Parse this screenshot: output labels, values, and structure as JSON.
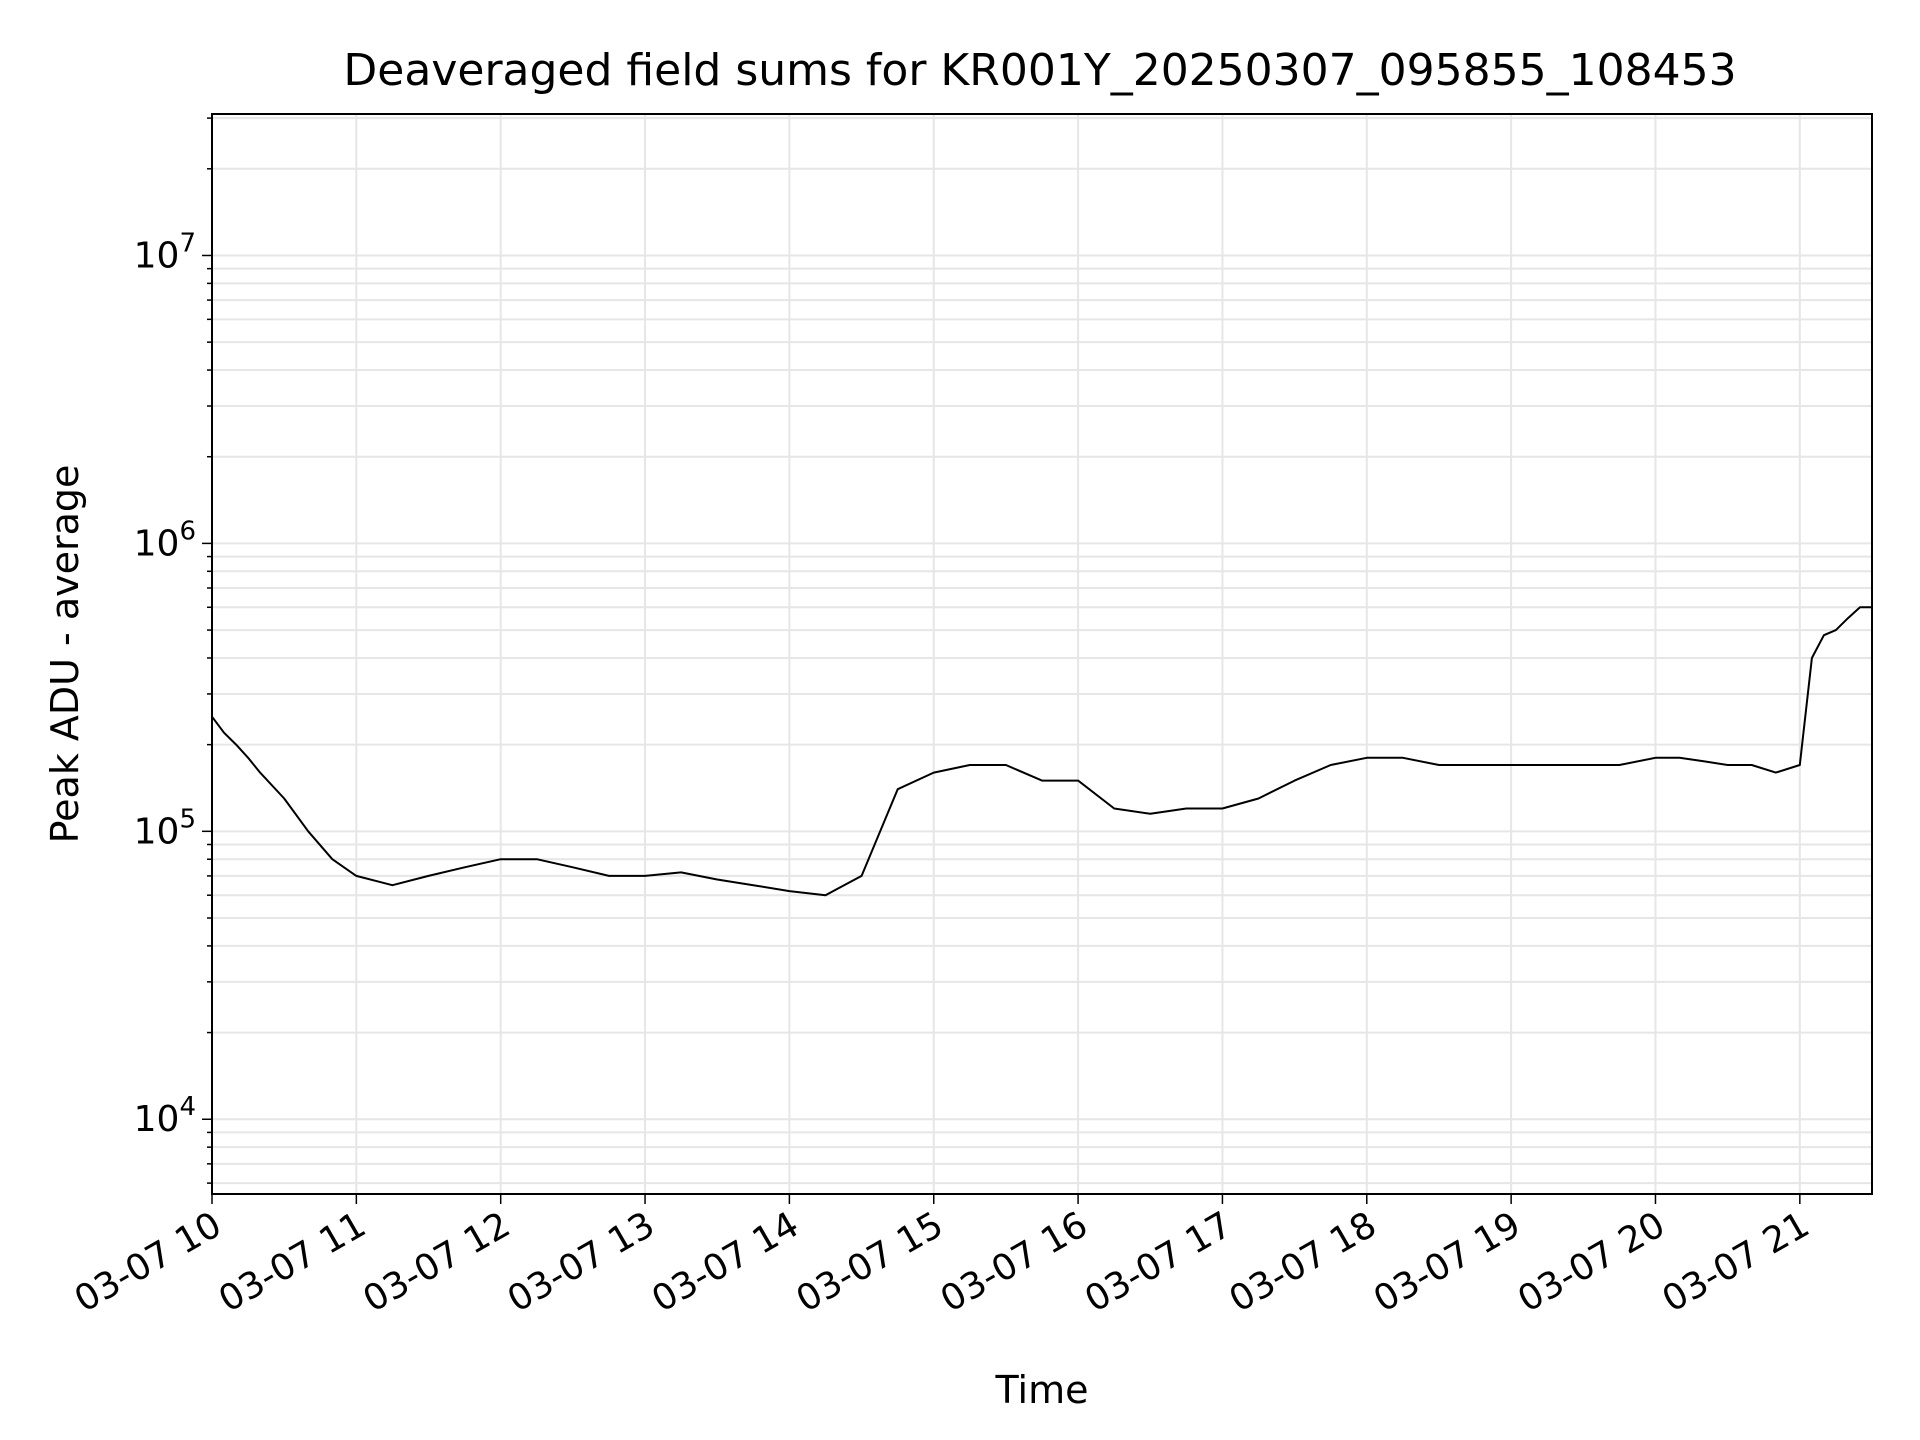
{
  "chart_data": {
    "type": "line",
    "title": "Deaveraged field sums for KR001Y_20250307_095855_108453",
    "xlabel": "Time",
    "ylabel": "Peak ADU - average",
    "yscale": "log",
    "ylim": [
      5500,
      31000000
    ],
    "xlim": [
      "2025-03-07 10:00",
      "2025-03-07 21:30"
    ],
    "grid": true,
    "line_color": "#000000",
    "grid_color": "#e6e6e6",
    "x_ticks": [
      "03-07 10",
      "03-07 11",
      "03-07 12",
      "03-07 13",
      "03-07 14",
      "03-07 15",
      "03-07 16",
      "03-07 17",
      "03-07 18",
      "03-07 19",
      "03-07 20",
      "03-07 21"
    ],
    "y_ticks": [
      {
        "base": "10",
        "exp": "4",
        "value": 10000
      },
      {
        "base": "10",
        "exp": "5",
        "value": 100000
      },
      {
        "base": "10",
        "exp": "6",
        "value": 1000000
      },
      {
        "base": "10",
        "exp": "7",
        "value": 10000000
      }
    ],
    "series": [
      {
        "x": [
          "2025-03-07 10:00",
          "2025-03-07 10:05",
          "2025-03-07 10:10",
          "2025-03-07 10:15",
          "2025-03-07 10:20",
          "2025-03-07 10:30",
          "2025-03-07 10:40",
          "2025-03-07 10:50",
          "2025-03-07 11:00",
          "2025-03-07 11:15",
          "2025-03-07 11:30",
          "2025-03-07 11:45",
          "2025-03-07 12:00",
          "2025-03-07 12:15",
          "2025-03-07 12:30",
          "2025-03-07 12:45",
          "2025-03-07 13:00",
          "2025-03-07 13:15",
          "2025-03-07 13:30",
          "2025-03-07 13:45",
          "2025-03-07 14:00",
          "2025-03-07 14:15",
          "2025-03-07 14:30",
          "2025-03-07 14:45",
          "2025-03-07 15:00",
          "2025-03-07 15:15",
          "2025-03-07 15:30",
          "2025-03-07 15:45",
          "2025-03-07 16:00",
          "2025-03-07 16:15",
          "2025-03-07 16:30",
          "2025-03-07 16:45",
          "2025-03-07 17:00",
          "2025-03-07 17:15",
          "2025-03-07 17:30",
          "2025-03-07 17:45",
          "2025-03-07 18:00",
          "2025-03-07 18:15",
          "2025-03-07 18:30",
          "2025-03-07 18:45",
          "2025-03-07 19:00",
          "2025-03-07 19:15",
          "2025-03-07 19:30",
          "2025-03-07 19:45",
          "2025-03-07 20:00",
          "2025-03-07 20:10",
          "2025-03-07 20:20",
          "2025-03-07 20:30",
          "2025-03-07 20:40",
          "2025-03-07 20:50",
          "2025-03-07 21:00",
          "2025-03-07 21:05",
          "2025-03-07 21:10",
          "2025-03-07 21:15",
          "2025-03-07 21:20",
          "2025-03-07 21:25",
          "2025-03-07 21:30"
        ],
        "y": [
          250000,
          220000,
          200000,
          180000,
          160000,
          130000,
          100000,
          80000,
          70000,
          65000,
          70000,
          75000,
          80000,
          80000,
          75000,
          70000,
          70000,
          72000,
          68000,
          65000,
          62000,
          60000,
          70000,
          140000,
          160000,
          170000,
          170000,
          150000,
          150000,
          120000,
          115000,
          120000,
          120000,
          130000,
          150000,
          170000,
          180000,
          180000,
          170000,
          170000,
          170000,
          170000,
          170000,
          170000,
          180000,
          180000,
          175000,
          170000,
          170000,
          160000,
          170000,
          400000,
          480000,
          500000,
          550000,
          600000,
          600000
        ]
      }
    ]
  }
}
